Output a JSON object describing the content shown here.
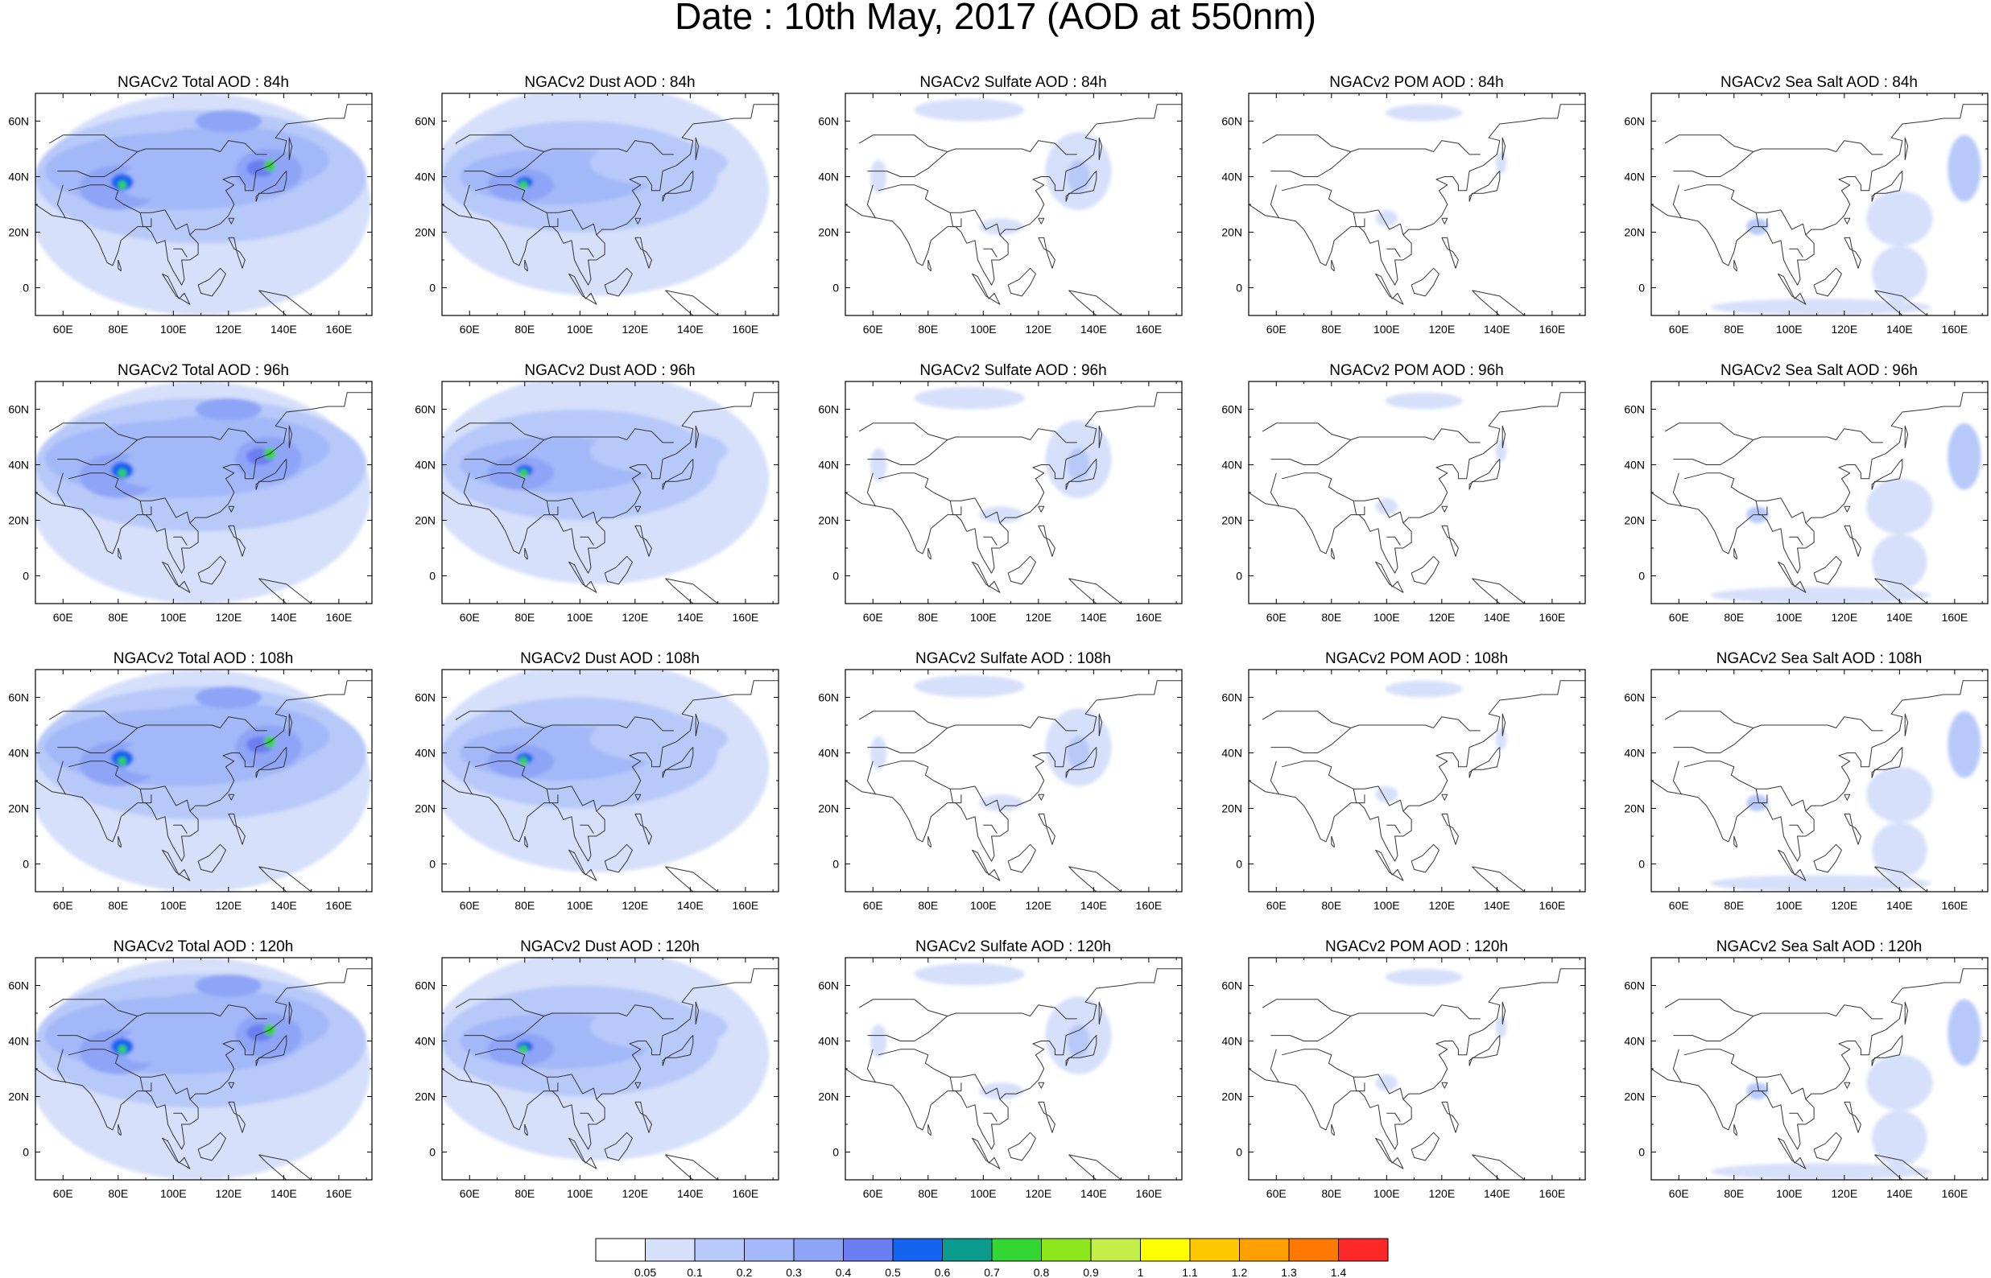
{
  "title": "Date : 10th May, 2017 (AOD at 550nm)",
  "lon_labels": [
    "60E",
    "80E",
    "100E",
    "120E",
    "140E",
    "160E"
  ],
  "lat_labels": [
    "60N",
    "40N",
    "20N",
    "0"
  ],
  "panels": [
    [
      "NGACv2 Total AOD : 84h",
      "NGACv2 Dust AOD : 84h",
      "NGACv2 Sulfate AOD : 84h",
      "NGACv2 POM AOD : 84h",
      "NGACv2 Sea Salt AOD : 84h"
    ],
    [
      "NGACv2 Total AOD : 96h",
      "NGACv2 Dust AOD : 96h",
      "NGACv2 Sulfate AOD : 96h",
      "NGACv2 POM AOD : 96h",
      "NGACv2 Sea Salt AOD : 96h"
    ],
    [
      "NGACv2 Total AOD : 108h",
      "NGACv2 Dust AOD : 108h",
      "NGACv2 Sulfate AOD : 108h",
      "NGACv2 POM AOD : 108h",
      "NGACv2 Sea Salt AOD : 108h"
    ],
    [
      "NGACv2 Total AOD : 120h",
      "NGACv2 Dust AOD : 120h",
      "NGACv2 Sulfate AOD : 120h",
      "NGACv2 POM AOD : 120h",
      "NGACv2 Sea Salt  AOD : 120h"
    ]
  ],
  "colorbar": {
    "labels": [
      "0.05",
      "0.1",
      "0.2",
      "0.3",
      "0.4",
      "0.5",
      "0.6",
      "0.7",
      "0.8",
      "0.9",
      "1",
      "1.1",
      "1.2",
      "1.3",
      "1.4"
    ],
    "colors": [
      "#ffffff",
      "#d6e0fb",
      "#b7c9f9",
      "#a3b8f8",
      "#8ea4f6",
      "#6b7ef1",
      "#1464f0",
      "#0a9a8e",
      "#33d633",
      "#8ee61c",
      "#c4ee4a",
      "#ffff00",
      "#ffc800",
      "#ffa000",
      "#ff7800",
      "#ff2828"
    ]
  }
}
